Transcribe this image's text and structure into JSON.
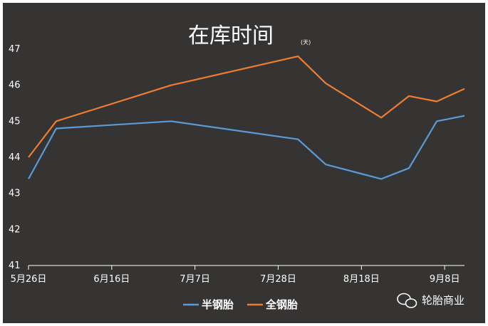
{
  "colors": {
    "background": "#363433",
    "semi_steel": "#5b9bd5",
    "all_steel": "#ed7d31"
  },
  "watermark": {
    "text": "轮胎商业",
    "icon": "wechat-icon"
  },
  "chart_data": {
    "type": "line",
    "title": "在库时间",
    "unit": "(天)",
    "xlabel": "",
    "ylabel": "",
    "x_tick_labels": [
      "5月26日",
      "6月16日",
      "7月7日",
      "7月28日",
      "8月18日",
      "9月8日"
    ],
    "x": [
      "5月26日",
      "6月2日",
      "7月1日",
      "8月2日",
      "8月9日",
      "8月23日",
      "8月30日",
      "9月6日",
      "9月13日"
    ],
    "series": [
      {
        "name": "半钢胎",
        "values": [
          43.4,
          44.8,
          45.0,
          44.5,
          43.8,
          43.4,
          43.7,
          45.0,
          45.15
        ]
      },
      {
        "name": "全钢胎",
        "values": [
          44.0,
          45.0,
          46.0,
          46.8,
          46.05,
          45.1,
          45.7,
          45.55,
          45.9
        ]
      }
    ],
    "y_ticks": [
      41,
      42,
      43,
      44,
      45,
      46,
      47
    ],
    "ylim": [
      41,
      47
    ],
    "grid": false,
    "legend": "bottom"
  }
}
